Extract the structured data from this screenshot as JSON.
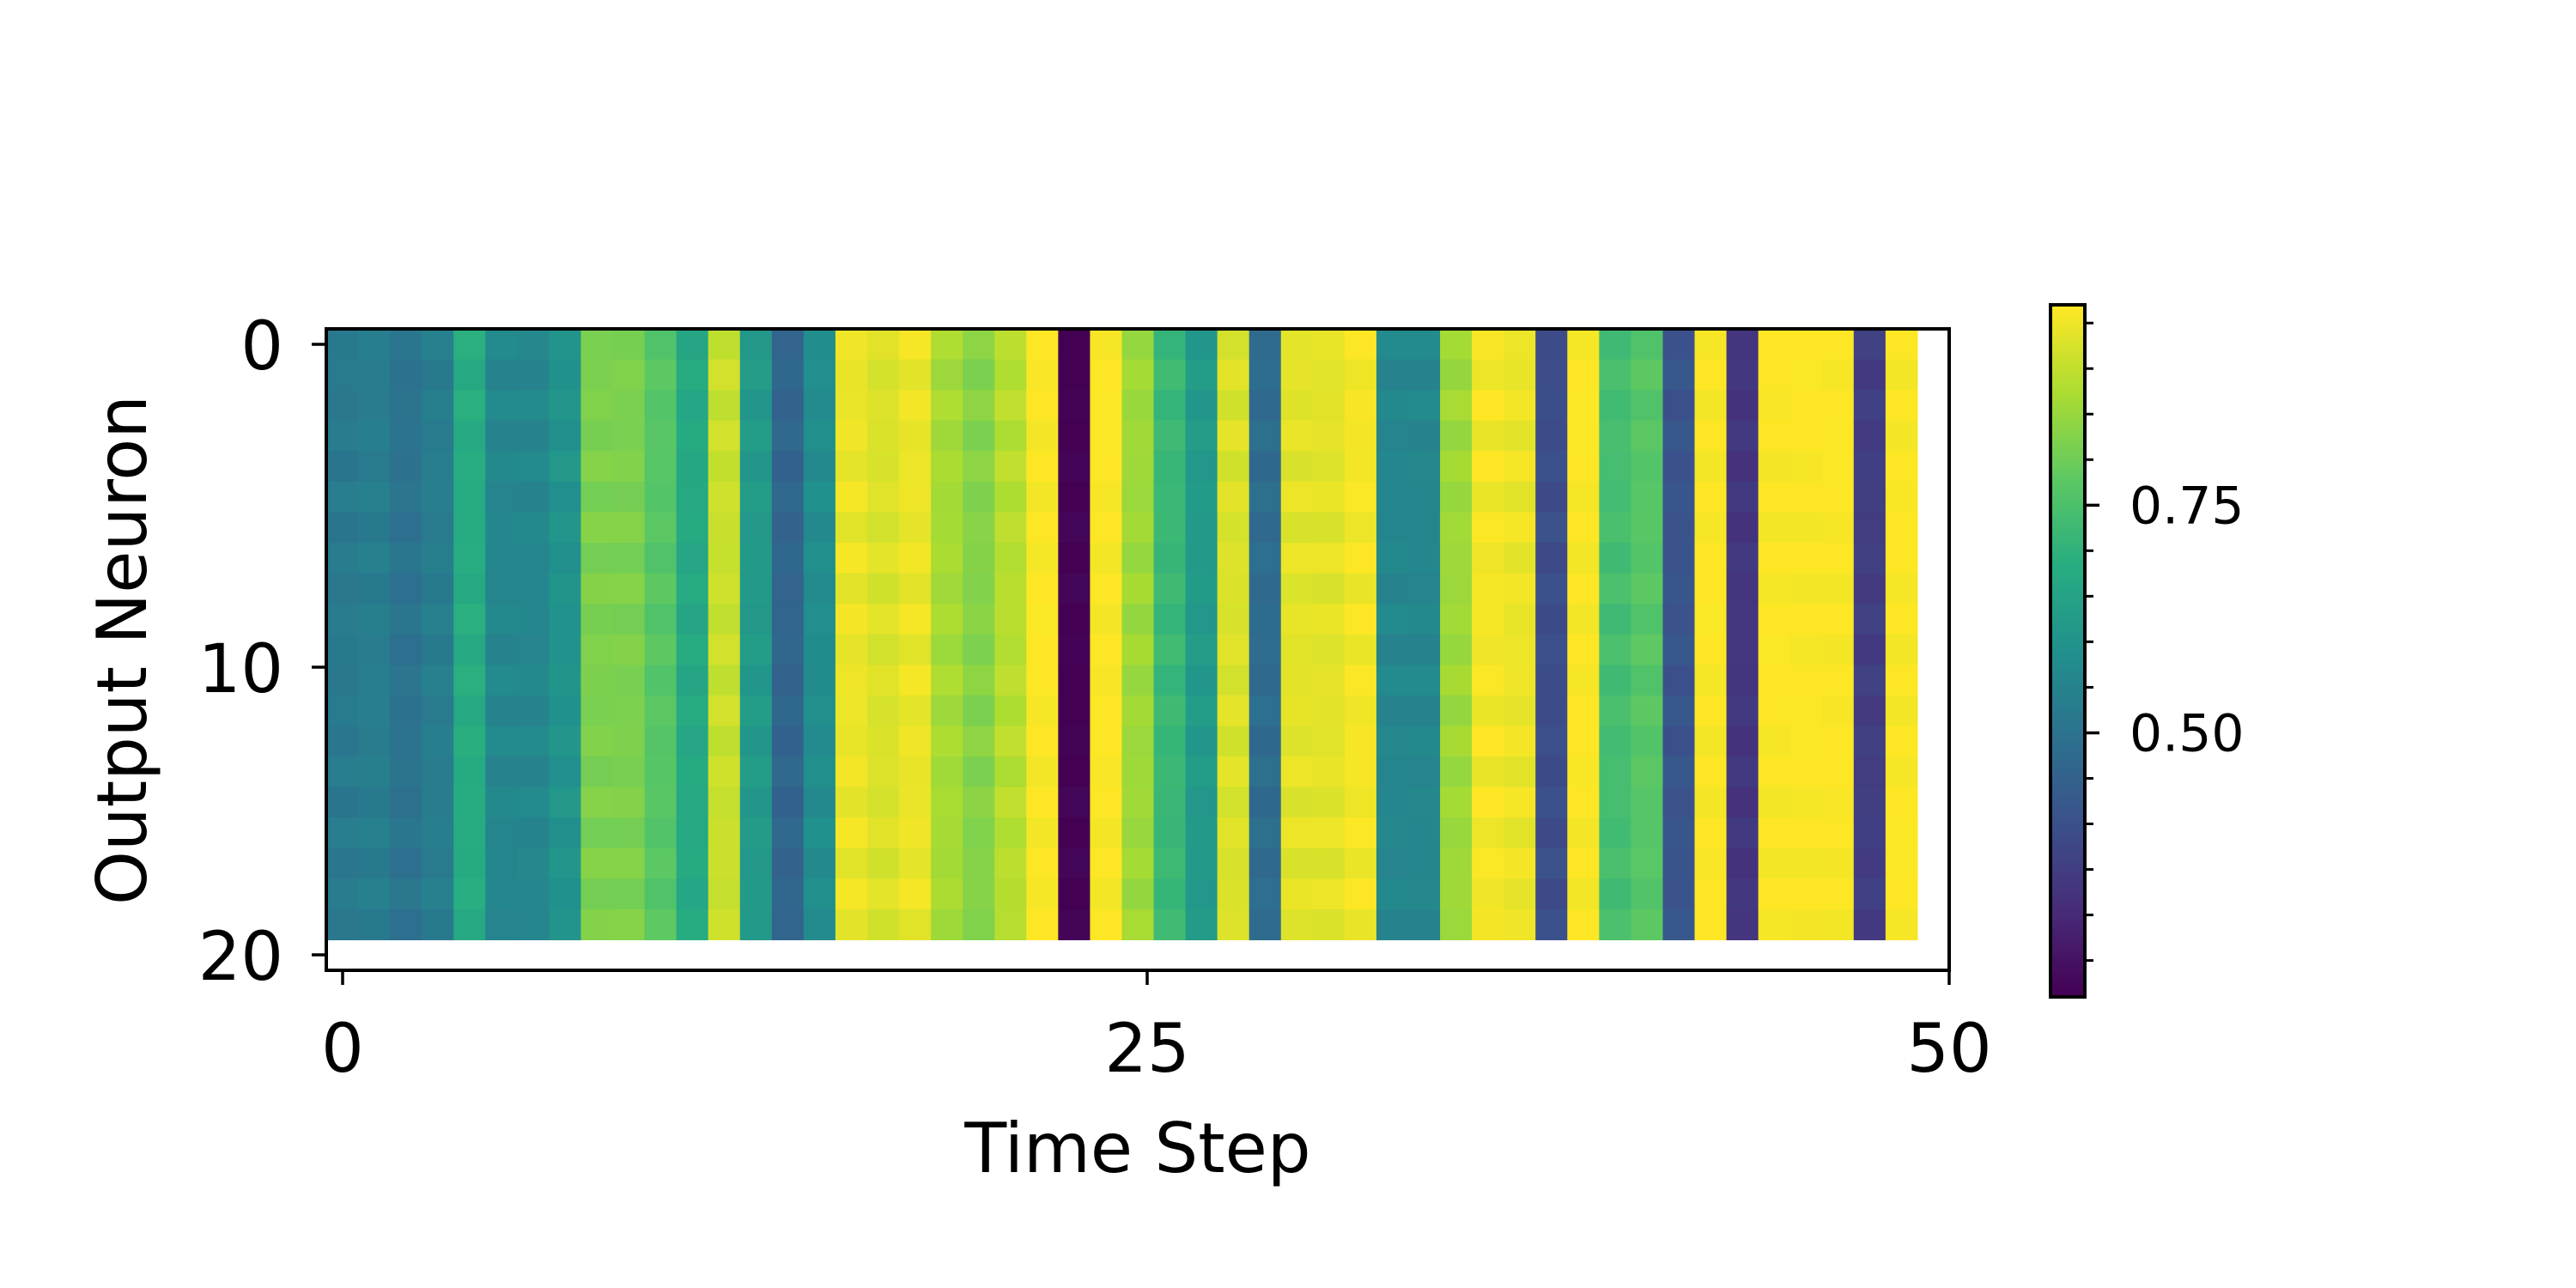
{
  "chart_data": {
    "type": "heatmap",
    "title": "",
    "xlabel": "Time Step",
    "ylabel": "Output Neuron",
    "x_ticks": [
      "0",
      "25",
      "50"
    ],
    "y_ticks": [
      "0",
      "10",
      "20"
    ],
    "xlim": [
      -0.5,
      50.5
    ],
    "ylim": [
      20.5,
      -0.5
    ],
    "rows": 20,
    "colormap": "viridis",
    "colorbar": {
      "vmin": 0.21,
      "vmax": 0.97,
      "ticks": [
        "0.50",
        "0.75"
      ],
      "tick_values": [
        0.5,
        0.75
      ],
      "minor_tick_step": 0.05
    },
    "column_values": [
      0.52,
      0.53,
      0.5,
      0.53,
      0.68,
      0.56,
      0.56,
      0.6,
      0.82,
      0.82,
      0.77,
      0.67,
      0.91,
      0.62,
      0.46,
      0.58,
      0.95,
      0.93,
      0.95,
      0.87,
      0.83,
      0.89,
      0.97,
      0.21,
      0.97,
      0.86,
      0.72,
      0.62,
      0.93,
      0.48,
      0.94,
      0.94,
      0.96,
      0.56,
      0.56,
      0.86,
      0.96,
      0.95,
      0.39,
      0.97,
      0.74,
      0.77,
      0.41,
      0.97,
      0.33,
      0.97,
      0.97,
      0.97,
      0.35,
      0.97
    ],
    "row_jitter_amplitude": 0.012
  }
}
